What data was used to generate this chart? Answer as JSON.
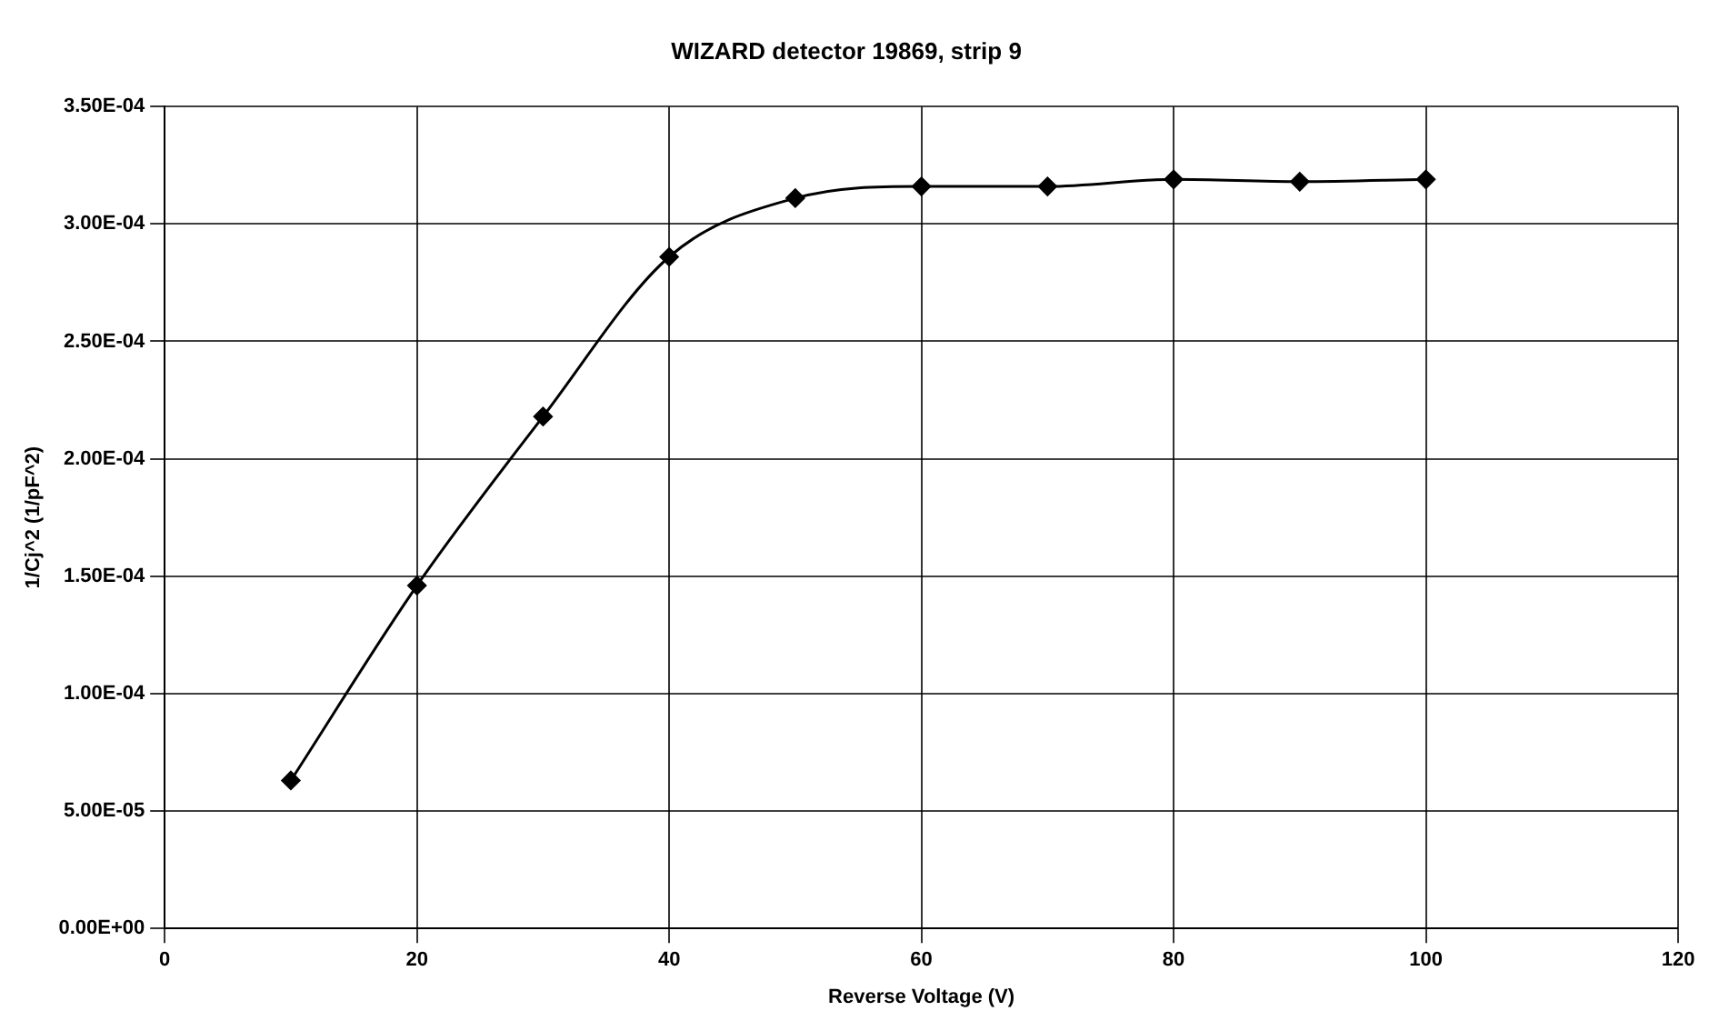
{
  "chart_data": {
    "type": "line",
    "title": "WIZARD detector 19869, strip 9",
    "xlabel": "Reverse Voltage (V)",
    "ylabel": "1/Cj^2 (1/pF^2)",
    "x": [
      10,
      20,
      30,
      40,
      50,
      60,
      70,
      80,
      90,
      100
    ],
    "series": [
      {
        "color": "#000000",
        "values": [
          6.3e-05,
          0.000146,
          0.000218,
          0.000286,
          0.000311,
          0.000316,
          0.000316,
          0.000319,
          0.000318,
          0.000319
        ]
      }
    ],
    "xlim": [
      0,
      120
    ],
    "xticks": [
      0,
      20,
      40,
      60,
      80,
      100,
      120
    ],
    "ylim": [
      0,
      0.00035
    ],
    "yticks": [
      {
        "value": 0,
        "label": "0.00E+00"
      },
      {
        "value": 5e-05,
        "label": "5.00E-05"
      },
      {
        "value": 0.0001,
        "label": "1.00E-04"
      },
      {
        "value": 0.00015,
        "label": "1.50E-04"
      },
      {
        "value": 0.0002,
        "label": "2.00E-04"
      },
      {
        "value": 0.00025,
        "label": "2.50E-04"
      },
      {
        "value": 0.0003,
        "label": "3.00E-04"
      },
      {
        "value": 0.00035,
        "label": "3.50E-04"
      }
    ],
    "grid": true,
    "marker": "diamond",
    "line_style": "solid",
    "legend": false
  }
}
